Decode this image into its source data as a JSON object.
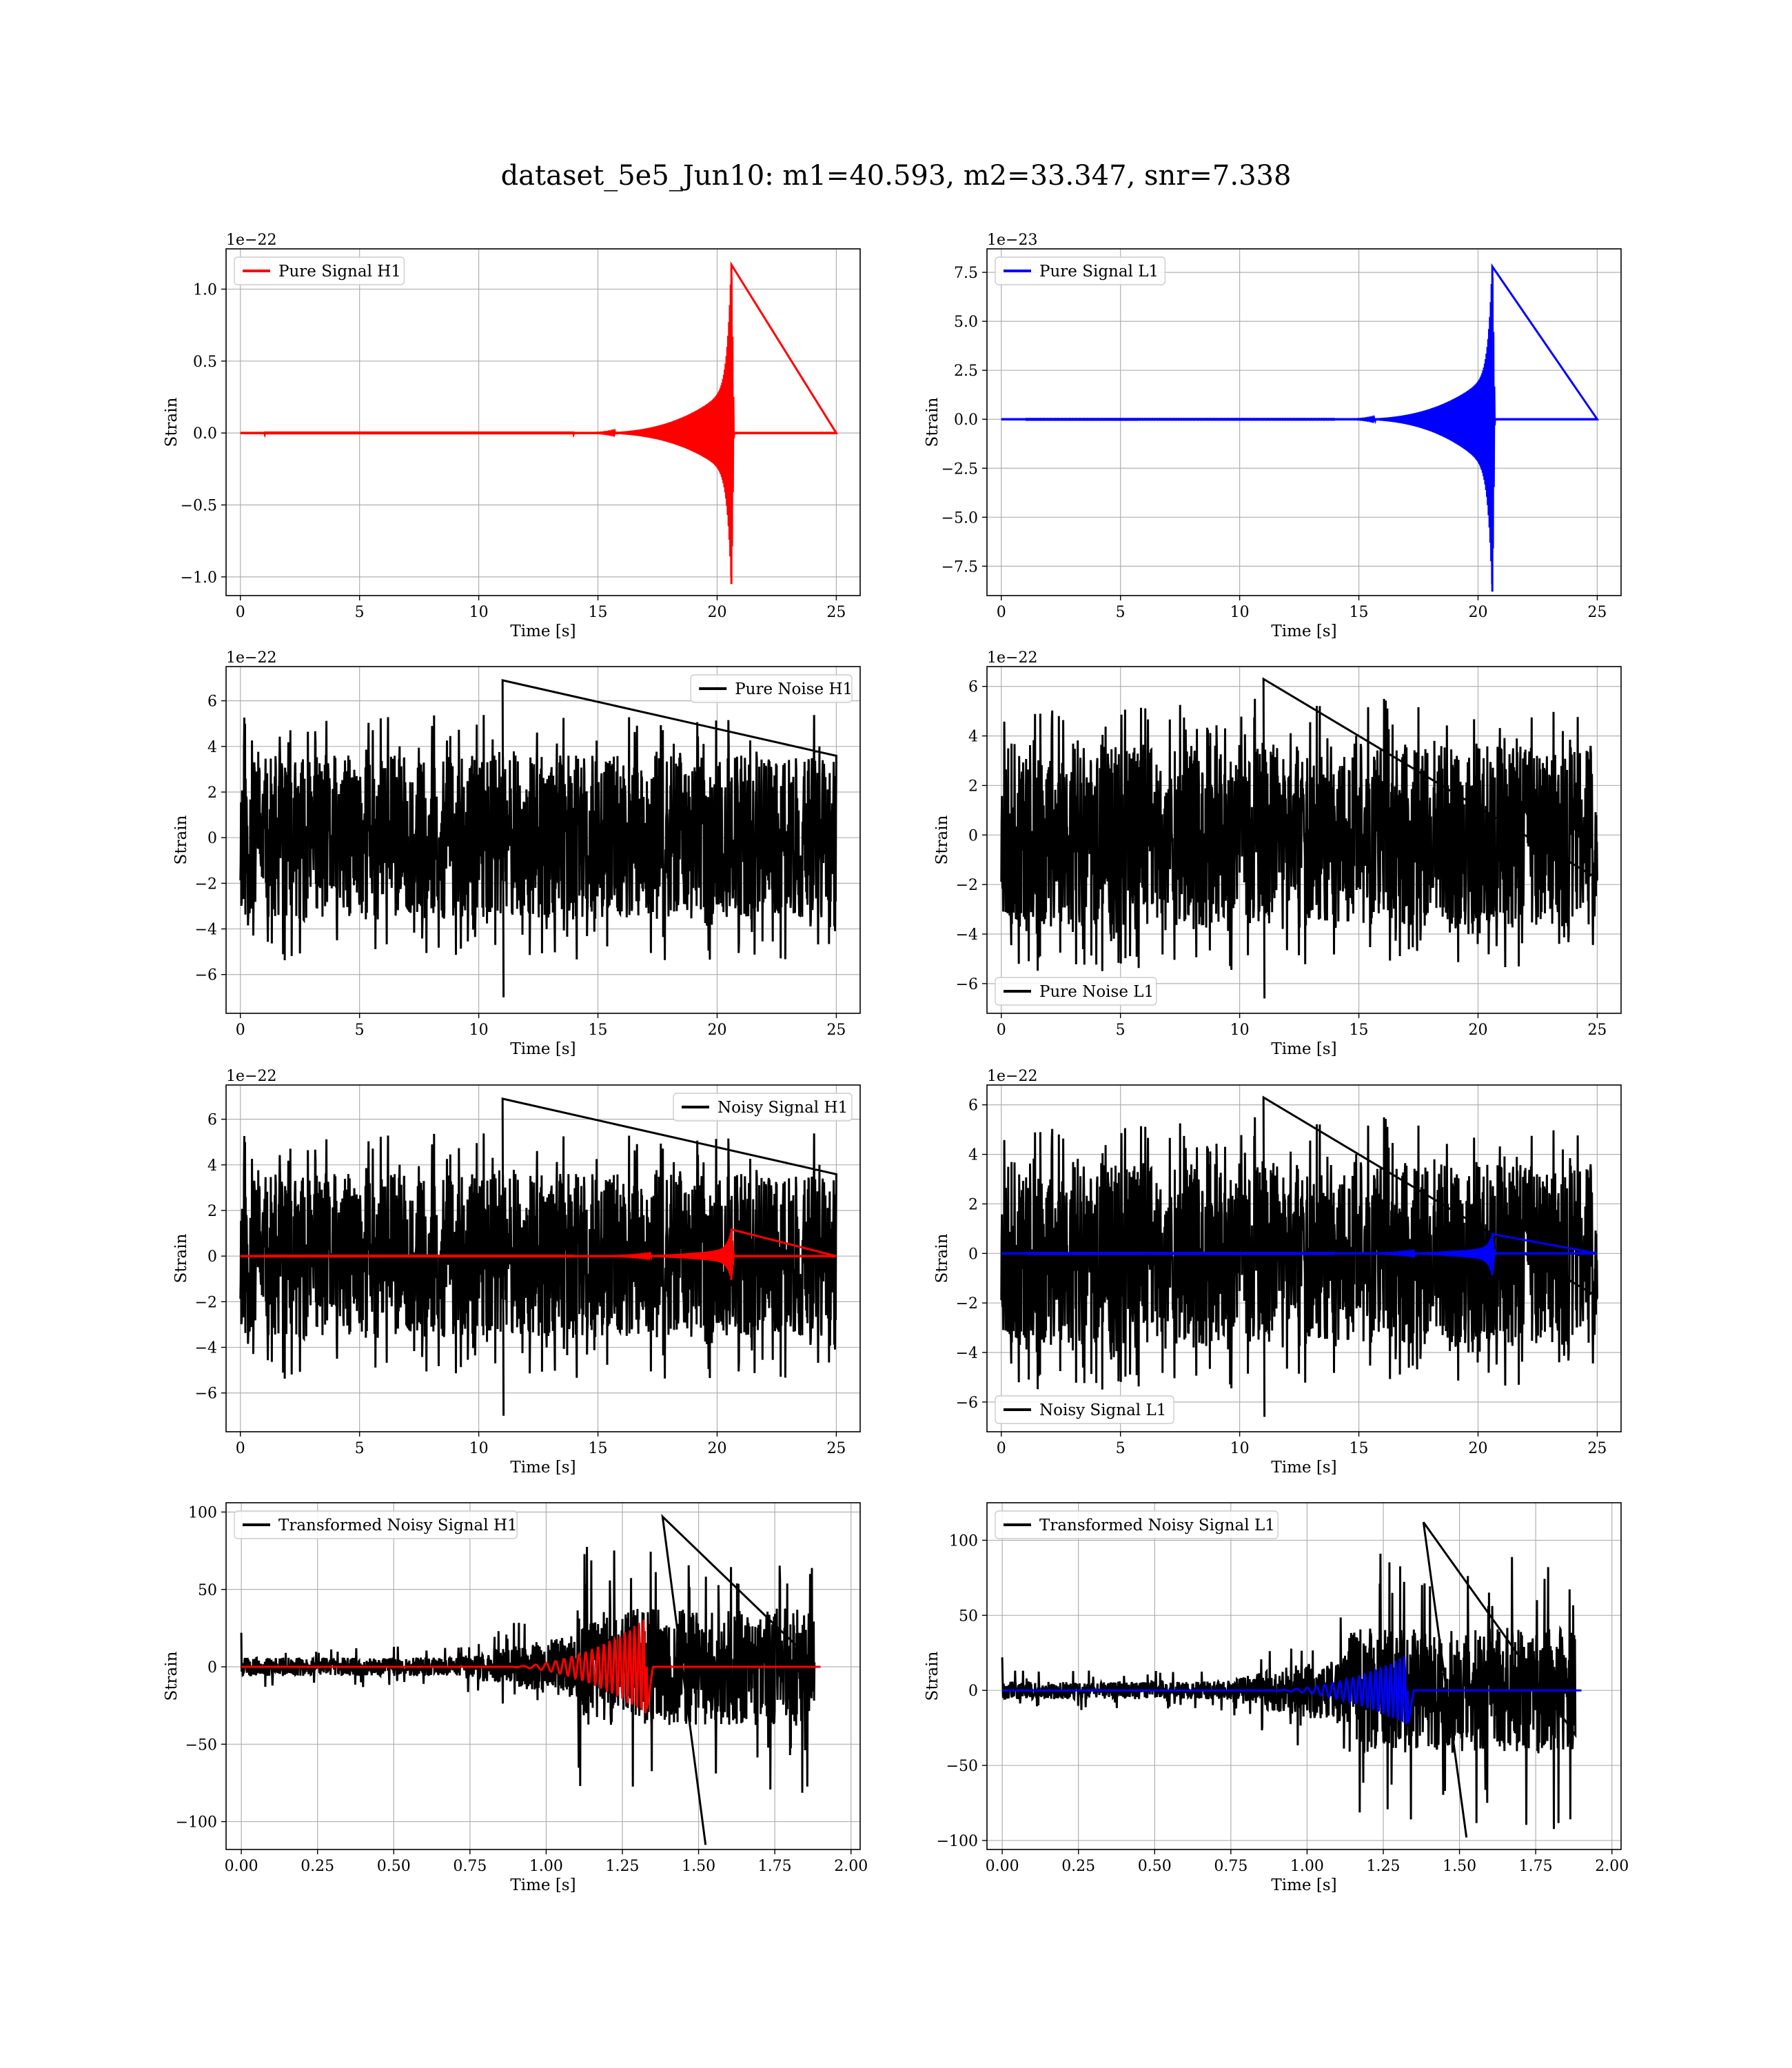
{
  "figure": {
    "title": "dataset_5e5_Jun10: m1=40.593, m2=33.347, snr=7.338"
  },
  "colors": {
    "h1_signal": "#ff0000",
    "l1_signal": "#0000ff",
    "noise": "#000000",
    "grid": "#b0b0b0"
  },
  "chart_data": [
    {
      "id": "pure-signal-h1",
      "type": "line",
      "xlabel": "Time [s]",
      "ylabel": "Strain",
      "offset_text": "1e−22",
      "xlim": [
        -0.6,
        26.0
      ],
      "ylim": [
        -1.13,
        1.28
      ],
      "xticks": [
        0,
        5,
        10,
        15,
        20,
        25
      ],
      "xtick_labels": [
        "0",
        "5",
        "10",
        "15",
        "20",
        "25"
      ],
      "yticks": [
        -1.0,
        -0.5,
        0.0,
        0.5,
        1.0
      ],
      "ytick_labels": [
        "−1.0",
        "−0.5",
        "0.0",
        "0.5",
        "1.0"
      ],
      "grid": true,
      "legend_position": "upper left",
      "series": [
        {
          "name": "Pure Signal H1",
          "color": "#ff0000",
          "kind": "chirp",
          "t_start": 0,
          "t_end": 25,
          "t_merger": 20.6,
          "peak": 1.17,
          "trough": -1.05,
          "inspiral_amp": 0.33,
          "t_inspiral_start": 14.0
        }
      ]
    },
    {
      "id": "pure-signal-l1",
      "type": "line",
      "xlabel": "Time [s]",
      "ylabel": "Strain",
      "offset_text": "1e−23",
      "xlim": [
        -0.6,
        26.0
      ],
      "ylim": [
        -9.0,
        8.7
      ],
      "xticks": [
        0,
        5,
        10,
        15,
        20,
        25
      ],
      "xtick_labels": [
        "0",
        "5",
        "10",
        "15",
        "20",
        "25"
      ],
      "yticks": [
        -7.5,
        -5.0,
        -2.5,
        0.0,
        2.5,
        5.0,
        7.5
      ],
      "ytick_labels": [
        "−7.5",
        "−5.0",
        "−2.5",
        "0.0",
        "2.5",
        "5.0",
        "7.5"
      ],
      "grid": true,
      "legend_position": "upper left",
      "series": [
        {
          "name": "Pure Signal L1",
          "color": "#0000ff",
          "kind": "chirp",
          "t_start": 0,
          "t_end": 25,
          "t_merger": 20.6,
          "peak": 7.8,
          "trough": -8.8,
          "inspiral_amp": 2.4,
          "t_inspiral_start": 14.0
        }
      ]
    },
    {
      "id": "pure-noise-h1",
      "type": "line",
      "xlabel": "Time [s]",
      "ylabel": "Strain",
      "offset_text": "1e−22",
      "xlim": [
        -0.6,
        26.0
      ],
      "ylim": [
        -7.7,
        7.5
      ],
      "xticks": [
        0,
        5,
        10,
        15,
        20,
        25
      ],
      "xtick_labels": [
        "0",
        "5",
        "10",
        "15",
        "20",
        "25"
      ],
      "yticks": [
        -6,
        -4,
        -2,
        0,
        2,
        4,
        6
      ],
      "ytick_labels": [
        "−6",
        "−4",
        "−2",
        "0",
        "2",
        "4",
        "6"
      ],
      "grid": true,
      "legend_position": "upper right",
      "series": [
        {
          "name": "Pure Noise H1",
          "color": "#000000",
          "kind": "noise",
          "t_start": 0,
          "t_end": 25,
          "band": 3.6,
          "max": 6.9,
          "min": -7.0,
          "seed": 11
        }
      ]
    },
    {
      "id": "pure-noise-l1",
      "type": "line",
      "xlabel": "Time [s]",
      "ylabel": "Strain",
      "offset_text": "1e−22",
      "xlim": [
        -0.6,
        26.0
      ],
      "ylim": [
        -7.2,
        6.8
      ],
      "xticks": [
        0,
        5,
        10,
        15,
        20,
        25
      ],
      "xtick_labels": [
        "0",
        "5",
        "10",
        "15",
        "20",
        "25"
      ],
      "yticks": [
        -6,
        -4,
        -2,
        0,
        2,
        4,
        6
      ],
      "ytick_labels": [
        "−6",
        "−4",
        "−2",
        "0",
        "2",
        "4",
        "6"
      ],
      "grid": true,
      "legend_position": "lower left",
      "series": [
        {
          "name": "Pure Noise L1",
          "color": "#000000",
          "kind": "noise",
          "t_start": 0,
          "t_end": 25,
          "band": 3.7,
          "max": 6.3,
          "min": -6.6,
          "seed": 23
        }
      ]
    },
    {
      "id": "noisy-signal-h1",
      "type": "line",
      "xlabel": "Time [s]",
      "ylabel": "Strain",
      "offset_text": "1e−22",
      "xlim": [
        -0.6,
        26.0
      ],
      "ylim": [
        -7.7,
        7.5
      ],
      "xticks": [
        0,
        5,
        10,
        15,
        20,
        25
      ],
      "xtick_labels": [
        "0",
        "5",
        "10",
        "15",
        "20",
        "25"
      ],
      "yticks": [
        -6,
        -4,
        -2,
        0,
        2,
        4,
        6
      ],
      "ytick_labels": [
        "−6",
        "−4",
        "−2",
        "0",
        "2",
        "4",
        "6"
      ],
      "grid": true,
      "legend_position": "upper right",
      "series": [
        {
          "name": "Noisy Signal H1",
          "color": "#000000",
          "kind": "noise",
          "t_start": 0,
          "t_end": 25,
          "band": 3.6,
          "max": 6.9,
          "min": -7.0,
          "seed": 11
        },
        {
          "name": "",
          "color": "#ff0000",
          "kind": "chirp",
          "t_start": 0,
          "t_end": 25,
          "t_merger": 20.6,
          "peak": 1.17,
          "trough": -1.05,
          "inspiral_amp": 0.33,
          "t_inspiral_start": 14.0
        }
      ]
    },
    {
      "id": "noisy-signal-l1",
      "type": "line",
      "xlabel": "Time [s]",
      "ylabel": "Strain",
      "offset_text": "1e−22",
      "xlim": [
        -0.6,
        26.0
      ],
      "ylim": [
        -7.2,
        6.8
      ],
      "xticks": [
        0,
        5,
        10,
        15,
        20,
        25
      ],
      "xtick_labels": [
        "0",
        "5",
        "10",
        "15",
        "20",
        "25"
      ],
      "yticks": [
        -6,
        -4,
        -2,
        0,
        2,
        4,
        6
      ],
      "ytick_labels": [
        "−6",
        "−4",
        "−2",
        "0",
        "2",
        "4",
        "6"
      ],
      "grid": true,
      "legend_position": "lower left",
      "series": [
        {
          "name": "Noisy Signal L1",
          "color": "#000000",
          "kind": "noise",
          "t_start": 0,
          "t_end": 25,
          "band": 3.7,
          "max": 6.3,
          "min": -6.6,
          "seed": 23
        },
        {
          "name": "",
          "color": "#0000ff",
          "kind": "chirp",
          "t_start": 0,
          "t_end": 25,
          "t_merger": 20.6,
          "peak": 0.78,
          "trough": -0.88,
          "inspiral_amp": 0.24,
          "t_inspiral_start": 14.0
        }
      ]
    },
    {
      "id": "transformed-noisy-signal-h1",
      "type": "line",
      "xlabel": "Time [s]",
      "ylabel": "Strain",
      "offset_text": "",
      "xlim": [
        -0.05,
        2.03
      ],
      "ylim": [
        -118,
        106
      ],
      "xticks": [
        0,
        0.25,
        0.5,
        0.75,
        1.0,
        1.25,
        1.5,
        1.75,
        2.0
      ],
      "xtick_labels": [
        "0.00",
        "0.25",
        "0.50",
        "0.75",
        "1.00",
        "1.25",
        "1.50",
        "1.75",
        "2.00"
      ],
      "yticks": [
        -100,
        -50,
        0,
        50,
        100
      ],
      "ytick_labels": [
        "−100",
        "−50",
        "0",
        "50",
        "100"
      ],
      "grid": true,
      "legend_position": "upper left",
      "series": [
        {
          "name": "Transformed Noisy Signal H1",
          "color": "#000000",
          "kind": "whitened",
          "t_start": 0,
          "t_end": 1.88,
          "early_band": 6,
          "late_band": 38,
          "t_rise": 1.1,
          "max": 97,
          "min": -115,
          "seed": 5
        },
        {
          "name": "",
          "color": "#ff0000",
          "kind": "whitened-chirp",
          "t_start": 0,
          "t_end": 1.9,
          "t_merger": 1.33,
          "peak": 32,
          "trough": -30
        }
      ]
    },
    {
      "id": "transformed-noisy-signal-l1",
      "type": "line",
      "xlabel": "Time [s]",
      "ylabel": "Strain",
      "offset_text": "",
      "xlim": [
        -0.05,
        2.03
      ],
      "ylim": [
        -106,
        125
      ],
      "xticks": [
        0,
        0.25,
        0.5,
        0.75,
        1.0,
        1.25,
        1.5,
        1.75,
        2.0
      ],
      "xtick_labels": [
        "0.00",
        "0.25",
        "0.50",
        "0.75",
        "1.00",
        "1.25",
        "1.50",
        "1.75",
        "2.00"
      ],
      "yticks": [
        -100,
        -50,
        0,
        50,
        100
      ],
      "ytick_labels": [
        "−100",
        "−50",
        "0",
        "50",
        "100"
      ],
      "grid": true,
      "legend_position": "upper left",
      "series": [
        {
          "name": "Transformed Noisy Signal L1",
          "color": "#000000",
          "kind": "whitened",
          "t_start": 0,
          "t_end": 1.88,
          "early_band": 6,
          "late_band": 42,
          "t_rise": 1.12,
          "max": 112,
          "min": -98,
          "seed": 9
        },
        {
          "name": "",
          "color": "#0000ff",
          "kind": "whitened-chirp",
          "t_start": 0,
          "t_end": 1.9,
          "t_merger": 1.33,
          "peak": 24,
          "trough": -24
        }
      ]
    }
  ]
}
